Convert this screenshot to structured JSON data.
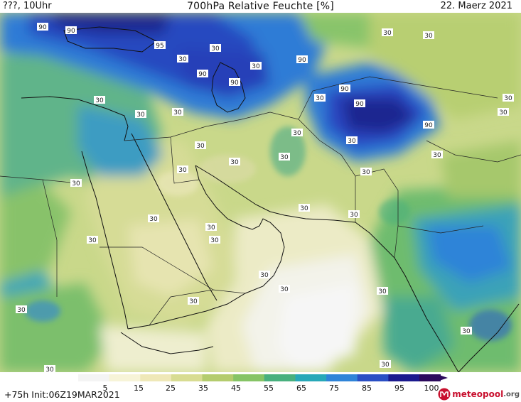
{
  "header": {
    "left": "???, 10Uhr",
    "title": "700hPa Relative Feuchte [%]",
    "right": "22. Maerz 2021"
  },
  "footer": {
    "left": "+75h Init:06Z19MAR2021",
    "logo": "meteopool",
    "logo_tld": ".org"
  },
  "colorbar": {
    "labels": [
      "5",
      "15",
      "25",
      "35",
      "45",
      "55",
      "65",
      "75",
      "85",
      "95",
      "100"
    ],
    "colors": [
      "#f4f4f4",
      "#f7f4d8",
      "#efe8b8",
      "#d8dc92",
      "#b4cc6e",
      "#86c466",
      "#48b07e",
      "#27a8b8",
      "#2f84d8",
      "#2a4fc4",
      "#1b1a8e",
      "#2c0a5c"
    ]
  },
  "contour_labels": [
    "90",
    "90",
    "95",
    "90",
    "90",
    "30",
    "90",
    "30",
    "90",
    "30",
    "90",
    "30",
    "30",
    "30",
    "30",
    "90",
    "30",
    "30",
    "30",
    "30",
    "30",
    "30",
    "30",
    "30",
    "30",
    "30",
    "30",
    "30",
    "30",
    "30",
    "30",
    "30",
    "30",
    "30",
    "30",
    "30",
    "30",
    "30",
    "30",
    "30",
    "30",
    "30",
    "30"
  ]
}
